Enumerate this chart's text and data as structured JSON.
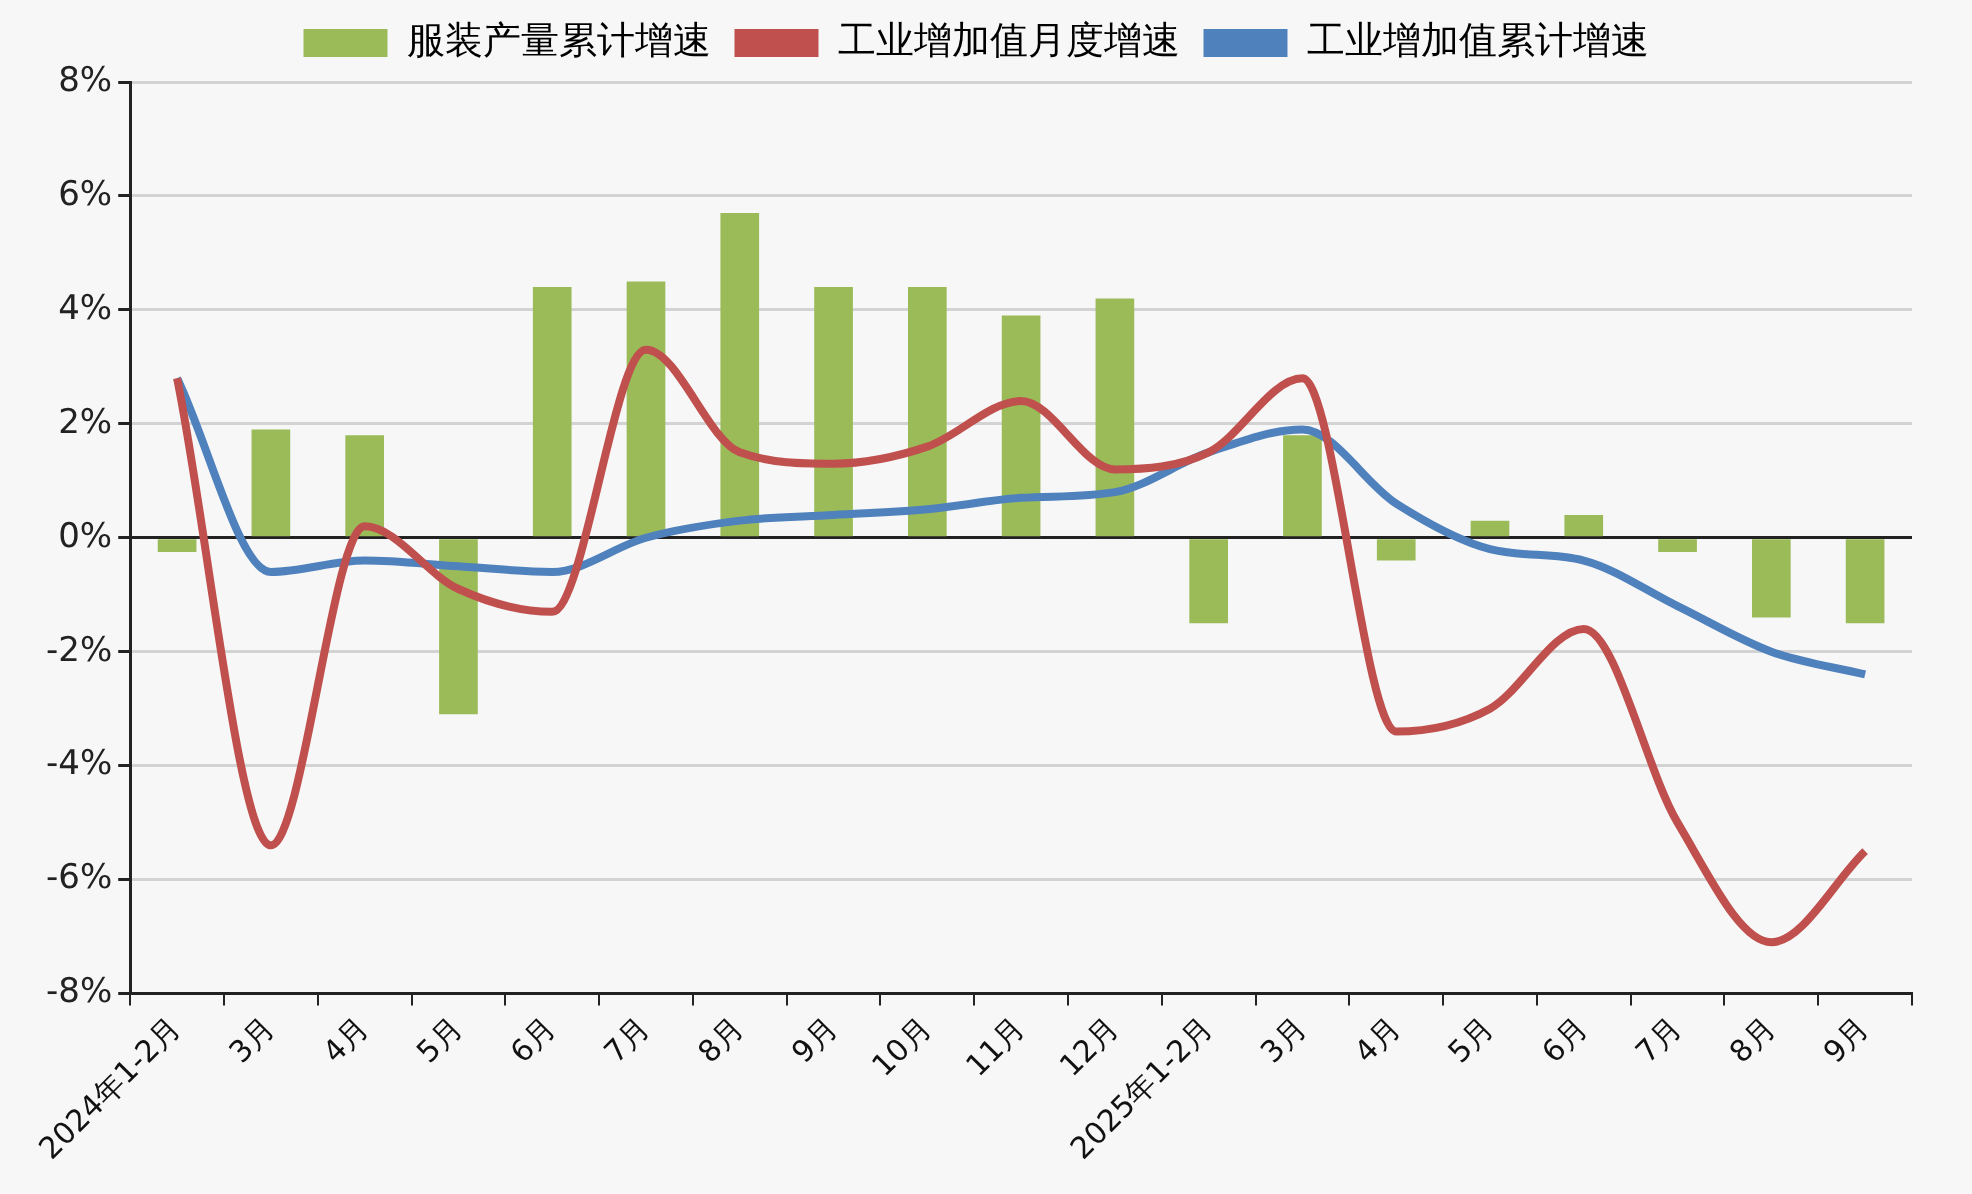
{
  "chart_data": {
    "type": "bar",
    "categories": [
      "2024年1-2月",
      "3月",
      "4月",
      "5月",
      "6月",
      "7月",
      "8月",
      "9月",
      "10月",
      "11月",
      "12月",
      "2025年1-2月",
      "3月",
      "4月",
      "5月",
      "6月",
      "7月",
      "8月",
      "9月"
    ],
    "series": [
      {
        "name": "服装产量累计增速",
        "color": "#9bbb59",
        "values": [
          -0.25,
          1.9,
          1.8,
          -3.1,
          4.4,
          4.5,
          5.7,
          4.4,
          4.4,
          3.9,
          4.2,
          -1.5,
          1.8,
          -0.4,
          0.3,
          0.4,
          -0.25,
          -1.4,
          -1.5
        ]
      },
      {
        "name": "工业增加值月度增速",
        "type": "line",
        "color": "#c0504d",
        "values": [
          2.8,
          -5.4,
          0.2,
          -0.9,
          -1.3,
          3.3,
          1.5,
          1.3,
          1.6,
          2.4,
          1.2,
          1.5,
          2.8,
          -3.4,
          -3.0,
          -1.6,
          -5.0,
          -7.1,
          -5.5
        ]
      },
      {
        "name": "工业增加值累计增速",
        "type": "line",
        "color": "#4f81bd",
        "values": [
          2.8,
          -0.6,
          -0.4,
          -0.5,
          -0.6,
          0.0,
          0.3,
          0.4,
          0.5,
          0.7,
          0.8,
          1.5,
          1.9,
          0.6,
          -0.2,
          -0.4,
          -1.2,
          -2.0,
          -2.4
        ]
      }
    ],
    "ylim": [
      -8,
      8
    ],
    "yticks": [
      {
        "value": -8,
        "label": "-8%"
      },
      {
        "value": -6,
        "label": "-6%"
      },
      {
        "value": -4,
        "label": "-4%"
      },
      {
        "value": -2,
        "label": "-2%"
      },
      {
        "value": 0,
        "label": "0%"
      },
      {
        "value": 2,
        "label": "2%"
      },
      {
        "value": 4,
        "label": "4%"
      },
      {
        "value": 6,
        "label": "6%"
      },
      {
        "value": 8,
        "label": "8%"
      }
    ],
    "grid": "y",
    "legend": "top",
    "marker": "none"
  }
}
